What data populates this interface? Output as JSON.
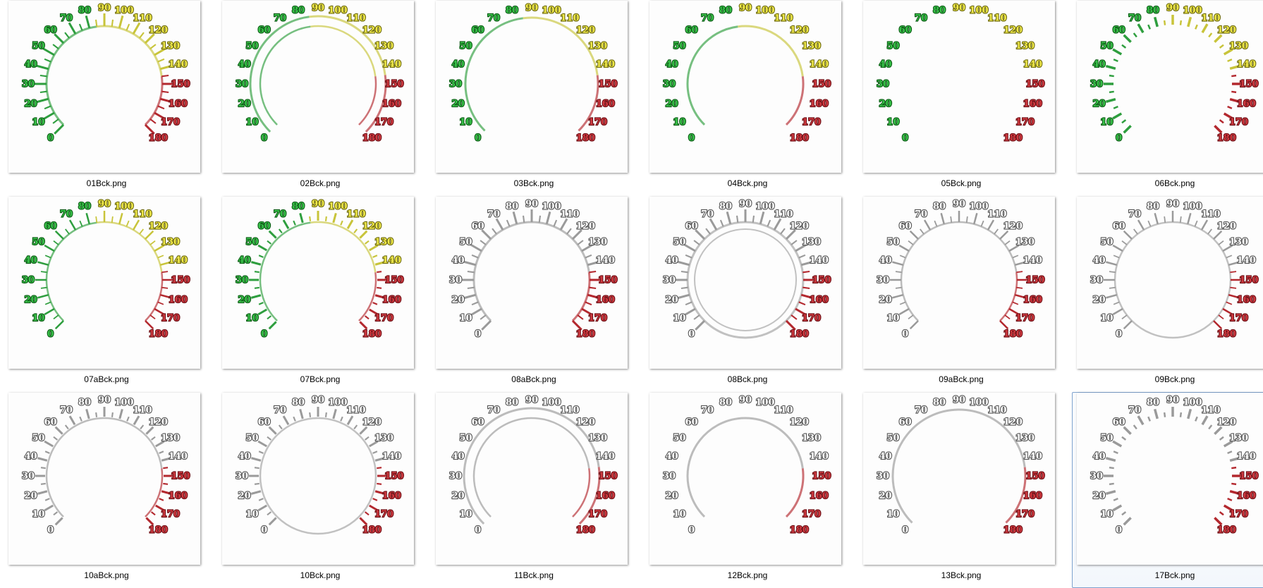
{
  "window": {
    "view": "thumbnails"
  },
  "colors": {
    "green": "#2e9e3e",
    "yellow": "#c8c43a",
    "red": "#b3282e",
    "gray": "#9a9a9a",
    "selection_border": "#7da2ce"
  },
  "scale_labels": [
    "0",
    "10",
    "20",
    "30",
    "40",
    "50",
    "60",
    "70",
    "80",
    "90",
    "100",
    "110",
    "120",
    "130",
    "140",
    "150",
    "160",
    "170",
    "180"
  ],
  "files": [
    {
      "name": "01Bck.png",
      "scheme": "color",
      "style": "ticks-arc",
      "selected": false
    },
    {
      "name": "02Bck.png",
      "scheme": "color",
      "style": "double-arc",
      "selected": false
    },
    {
      "name": "03Bck.png",
      "scheme": "color",
      "style": "outer-arc",
      "selected": false
    },
    {
      "name": "04Bck.png",
      "scheme": "color",
      "style": "inner-arc",
      "selected": false
    },
    {
      "name": "05Bck.png",
      "scheme": "color",
      "style": "numbers-only",
      "selected": false
    },
    {
      "name": "06Bck.png",
      "scheme": "color",
      "style": "dashes",
      "selected": false
    },
    {
      "name": "07aBck.png",
      "scheme": "color",
      "style": "ticks-arc-thin",
      "selected": false
    },
    {
      "name": "07Bck.png",
      "scheme": "color",
      "style": "dashes-arc",
      "selected": false
    },
    {
      "name": "08aBck.png",
      "scheme": "gray",
      "style": "ticks-arc",
      "selected": false
    },
    {
      "name": "08Bck.png",
      "scheme": "gray",
      "style": "ticks-full-circle",
      "selected": false
    },
    {
      "name": "09aBck.png",
      "scheme": "gray",
      "style": "ticks-arc-thin",
      "selected": false
    },
    {
      "name": "09Bck.png",
      "scheme": "gray",
      "style": "ticks-circle-thin",
      "selected": false
    },
    {
      "name": "10aBck.png",
      "scheme": "gray",
      "style": "dashes-arc",
      "selected": false
    },
    {
      "name": "10Bck.png",
      "scheme": "gray",
      "style": "dashes-circle",
      "selected": false
    },
    {
      "name": "11Bck.png",
      "scheme": "gray",
      "style": "double-arc",
      "selected": false
    },
    {
      "name": "12Bck.png",
      "scheme": "gray",
      "style": "inner-arc",
      "selected": false
    },
    {
      "name": "13Bck.png",
      "scheme": "gray",
      "style": "outer-arc",
      "selected": false
    },
    {
      "name": "17Bck.png",
      "scheme": "gray",
      "style": "dashes",
      "selected": true
    }
  ]
}
